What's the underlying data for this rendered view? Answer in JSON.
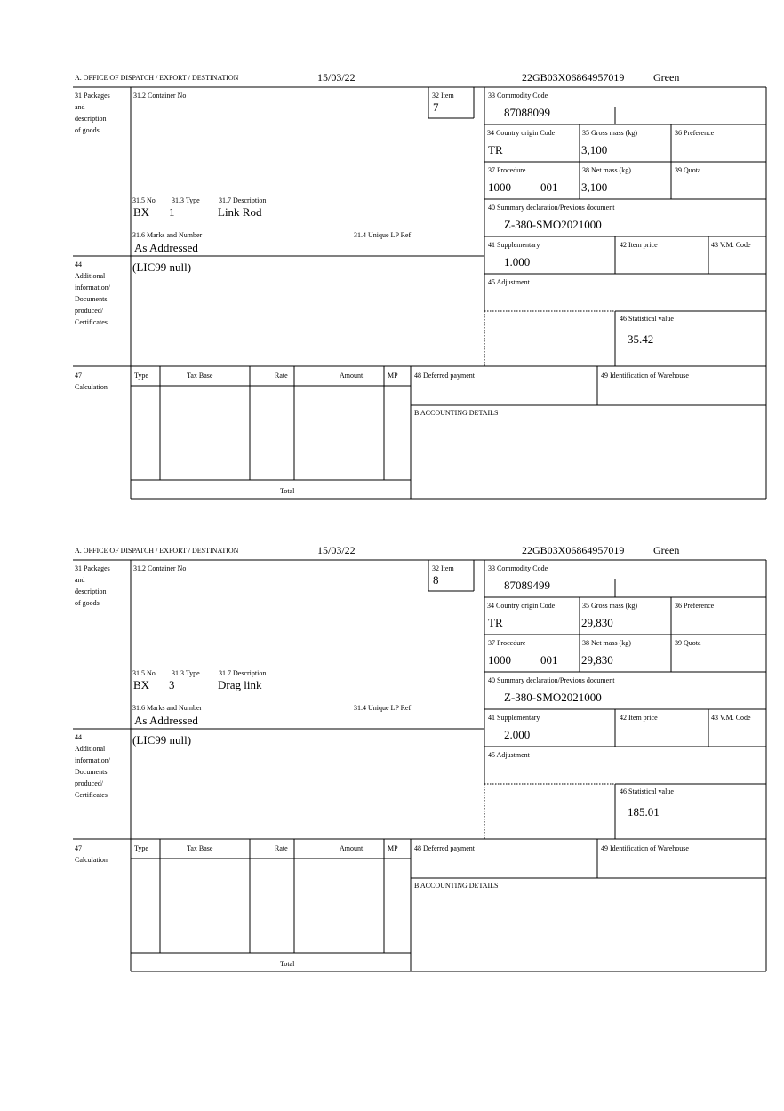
{
  "forms": [
    {
      "header": {
        "office": "A.  OFFICE OF DISPATCH / EXPORT / DESTINATION",
        "date": "15/03/22",
        "reference": "22GB03X06864957019",
        "status": "Green"
      },
      "labels": {
        "packages": [
          "31 Packages",
          "and",
          "description",
          "of goods"
        ],
        "container_no": "31.2 Container No",
        "item": "32 Item",
        "commodity_code": "33 Commodity Code",
        "country_origin": "34 Country origin Code",
        "gross_mass": "35 Gross mass (kg)",
        "preference": "36 Preference",
        "procedure": "37 Procedure",
        "net_mass": "38 Net mass (kg)",
        "quota": "39 Quota",
        "no": "31.5 No",
        "type": "31.3 Type",
        "description": "31.7 Description",
        "summary_declaration": "40 Summary declaration/Previous document",
        "marks": "31.6 Marks and Number",
        "unique_lp_ref": "31.4 Unique LP Ref",
        "supplementary": "41 Supplementary",
        "item_price": "42 Item price",
        "vm_code": "43 V.M. Code",
        "additional_info": [
          "44",
          "Additional",
          "information/",
          "Documents",
          "produced/",
          "Certificates"
        ],
        "adjustment": "45 Adjustment",
        "statistical_value": "46 Statistical value",
        "calculation": [
          "47",
          "Calculation"
        ],
        "tax_type": "Type",
        "tax_base": "Tax Base",
        "rate": "Rate",
        "amount": "Amount",
        "mp": "MP",
        "deferred_payment": "48 Deferred payment",
        "warehouse": "49 Identification of Warehouse",
        "accounting": "B ACCOUNTING DETAILS",
        "total": "Total"
      },
      "values": {
        "item": "7",
        "commodity_code": "87088099",
        "country_origin": "TR",
        "gross_mass": "3,100",
        "procedure": "1000",
        "procedure_extra": "001",
        "net_mass": "3,100",
        "summary_declaration": "Z-380-SMO2021000",
        "no": "BX",
        "type": "1",
        "description": "Link Rod",
        "marks": "As Addressed",
        "supplementary": "1.000",
        "additional_info": "(LIC99 null)",
        "statistical_value": "35.42"
      }
    },
    {
      "header": {
        "office": "A.  OFFICE OF DISPATCH / EXPORT / DESTINATION",
        "date": "15/03/22",
        "reference": "22GB03X06864957019",
        "status": "Green"
      },
      "labels": {
        "packages": [
          "31 Packages",
          "and",
          "description",
          "of goods"
        ],
        "container_no": "31.2 Container No",
        "item": "32 Item",
        "commodity_code": "33 Commodity Code",
        "country_origin": "34 Country origin Code",
        "gross_mass": "35 Gross mass (kg)",
        "preference": "36 Preference",
        "procedure": "37 Procedure",
        "net_mass": "38 Net mass (kg)",
        "quota": "39 Quota",
        "no": "31.5 No",
        "type": "31.3 Type",
        "description": "31.7 Description",
        "summary_declaration": "40 Summary declaration/Previous document",
        "marks": "31.6 Marks and Number",
        "unique_lp_ref": "31.4 Unique LP Ref",
        "supplementary": "41 Supplementary",
        "item_price": "42 Item price",
        "vm_code": "43 V.M. Code",
        "additional_info": [
          "44",
          "Additional",
          "information/",
          "Documents",
          "produced/",
          "Certificates"
        ],
        "adjustment": "45 Adjustment",
        "statistical_value": "46 Statistical value",
        "calculation": [
          "47",
          "Calculation"
        ],
        "tax_type": "Type",
        "tax_base": "Tax Base",
        "rate": "Rate",
        "amount": "Amount",
        "mp": "MP",
        "deferred_payment": "48 Deferred payment",
        "warehouse": "49 Identification of Warehouse",
        "accounting": "B ACCOUNTING DETAILS",
        "total": "Total"
      },
      "values": {
        "item": "8",
        "commodity_code": "87089499",
        "country_origin": "TR",
        "gross_mass": "29,830",
        "procedure": "1000",
        "procedure_extra": "001",
        "net_mass": "29,830",
        "summary_declaration": "Z-380-SMO2021000",
        "no": "BX",
        "type": "3",
        "description": "Drag link",
        "marks": "As Addressed",
        "supplementary": "2.000",
        "additional_info": "(LIC99 null)",
        "statistical_value": "185.01"
      }
    }
  ]
}
